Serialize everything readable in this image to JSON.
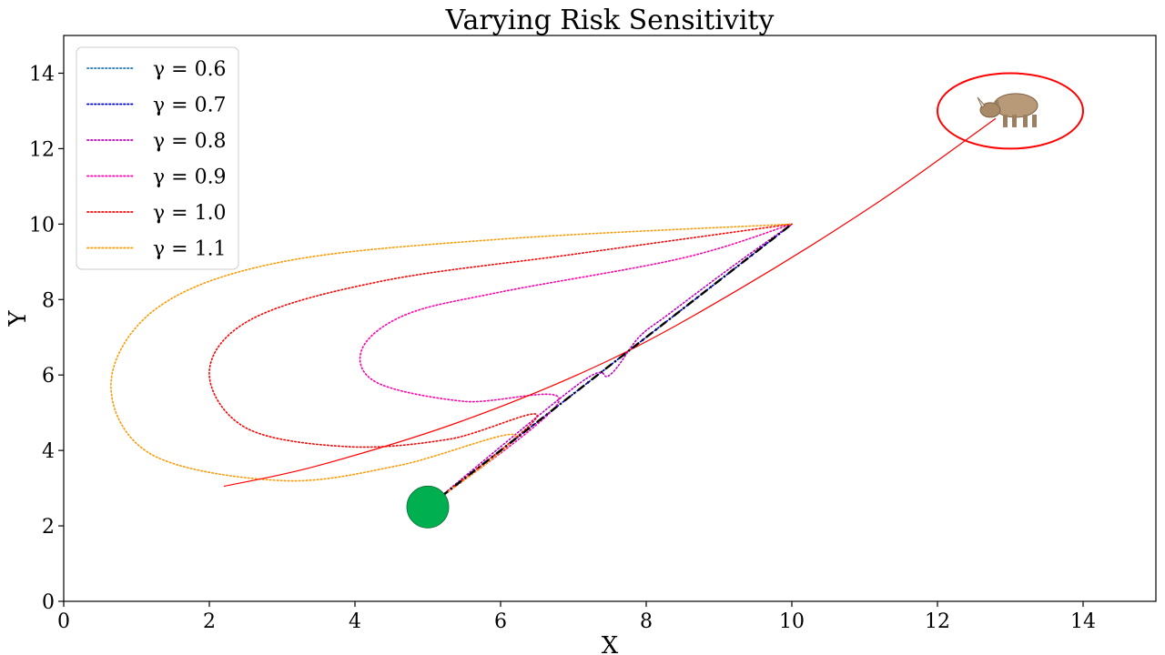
{
  "chart_data": {
    "type": "line",
    "title": "Varying Risk Sensitivity",
    "xlabel": "X",
    "ylabel": "Y",
    "xlim": [
      0,
      15
    ],
    "ylim": [
      0,
      15
    ],
    "xticks": [
      "0",
      "2",
      "4",
      "6",
      "8",
      "10",
      "12",
      "14"
    ],
    "yticks": [
      "0",
      "2",
      "4",
      "6",
      "8",
      "10",
      "12",
      "14"
    ],
    "grid": false,
    "legend_position": "top-left",
    "start": {
      "x": 5,
      "y": 2.5,
      "color": "#00b050"
    },
    "goal_region": {
      "x": 13,
      "y": 13,
      "color": "#ff0000",
      "icon": "rhino-icon"
    },
    "reference_path": {
      "points": [
        [
          5,
          2.5
        ],
        [
          10,
          10
        ]
      ],
      "color": "#000000",
      "style": "dash-dot"
    },
    "agent_path": {
      "points": [
        [
          2.2,
          3.05
        ],
        [
          3.5,
          3.6
        ],
        [
          5.5,
          4.8
        ],
        [
          7.5,
          6.4
        ],
        [
          9.3,
          8.3
        ],
        [
          11.2,
          10.6
        ],
        [
          12.8,
          12.8
        ]
      ],
      "color": "#ff0000",
      "style": "solid"
    },
    "series": [
      {
        "name": "γ = 0.6",
        "color": "#1f77b4",
        "points": [
          [
            5,
            2.5
          ],
          [
            10,
            10
          ]
        ]
      },
      {
        "name": "γ = 0.7",
        "color": "#0000cc",
        "points": [
          [
            5,
            2.5
          ],
          [
            10,
            10
          ]
        ]
      },
      {
        "name": "γ = 0.8",
        "color": "#c000c0",
        "points": [
          [
            5,
            2.5
          ],
          [
            7.1,
            5.8
          ],
          [
            7.5,
            6.0
          ],
          [
            7.9,
            7.0
          ],
          [
            8.3,
            7.6
          ],
          [
            9.2,
            8.9
          ],
          [
            10,
            10
          ]
        ]
      },
      {
        "name": "γ = 0.9",
        "color": "#ff00aa",
        "points": [
          [
            5,
            2.5
          ],
          [
            6.8,
            5.3
          ],
          [
            5.5,
            5.3
          ],
          [
            4.3,
            5.8
          ],
          [
            4.1,
            6.7
          ],
          [
            4.7,
            7.6
          ],
          [
            6,
            8.2
          ],
          [
            8.5,
            9.1
          ],
          [
            10,
            10
          ]
        ]
      },
      {
        "name": "γ = 1.0",
        "color": "#ff0000",
        "points": [
          [
            5,
            2.5
          ],
          [
            6.5,
            4.9
          ],
          [
            5.3,
            4.3
          ],
          [
            3.9,
            4.1
          ],
          [
            2.5,
            4.6
          ],
          [
            2,
            6.1
          ],
          [
            2.6,
            7.5
          ],
          [
            4.4,
            8.5
          ],
          [
            7,
            9.2
          ],
          [
            10,
            10
          ]
        ]
      },
      {
        "name": "γ = 1.1",
        "color": "#ff9900",
        "points": [
          [
            5,
            2.5
          ],
          [
            6.2,
            4.4
          ],
          [
            4.6,
            3.6
          ],
          [
            3,
            3.2
          ],
          [
            1.2,
            3.9
          ],
          [
            0.65,
            5.8
          ],
          [
            1.3,
            7.8
          ],
          [
            3,
            9.0
          ],
          [
            6,
            9.6
          ],
          [
            10,
            10
          ]
        ]
      }
    ]
  }
}
